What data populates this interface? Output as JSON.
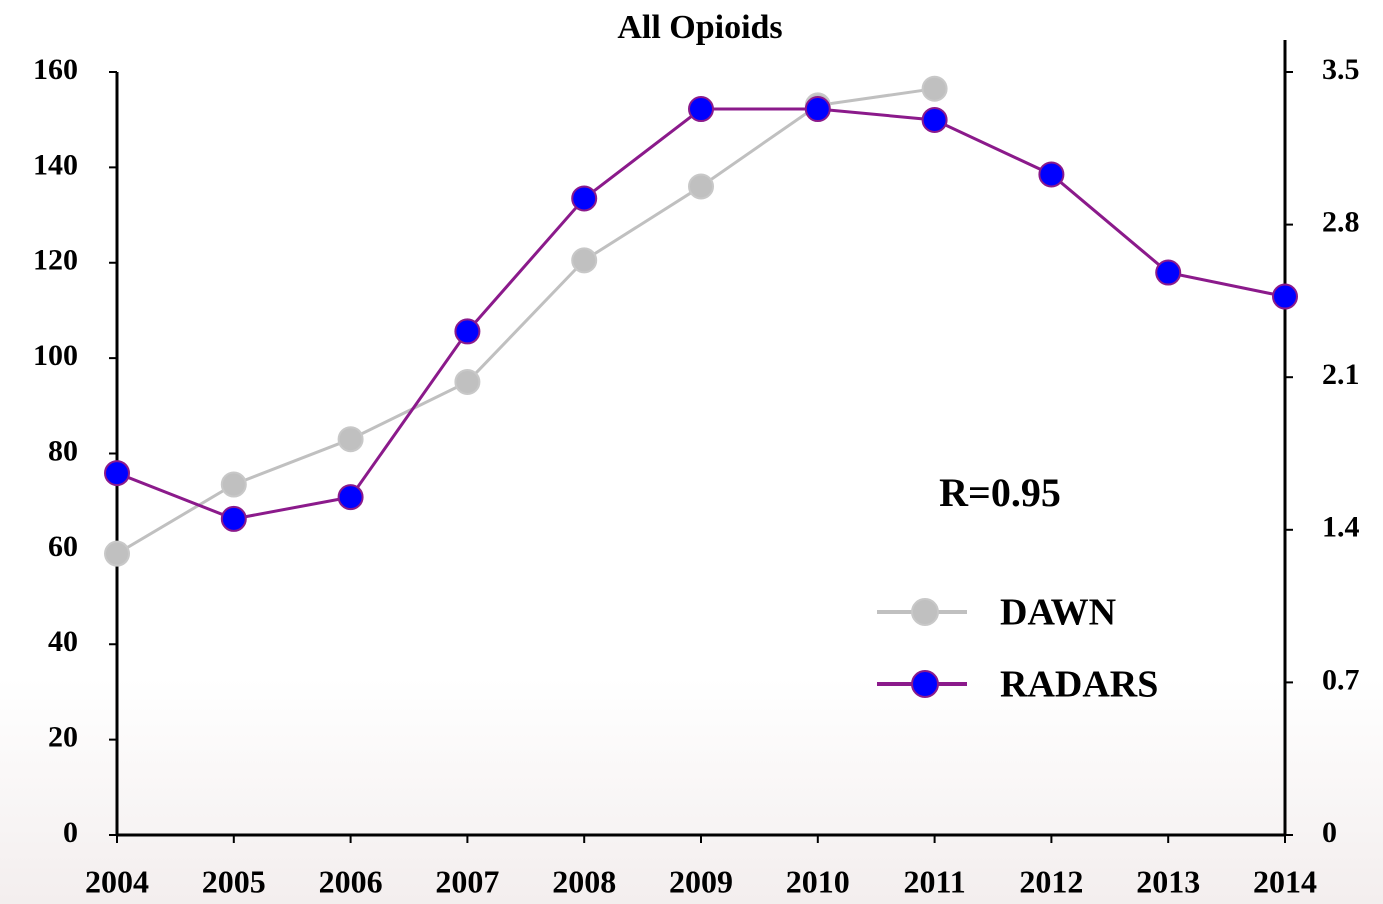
{
  "chart_data": {
    "type": "line",
    "title": "All Opioids",
    "categories": [
      "2004",
      "2005",
      "2006",
      "2007",
      "2008",
      "2009",
      "2010",
      "2011",
      "2012",
      "2013",
      "2014"
    ],
    "series": [
      {
        "name": "DAWN",
        "color": "#c0c0c0",
        "values": [
          59,
          73.5,
          83,
          95,
          120.5,
          136,
          153,
          156.5,
          null,
          null,
          null
        ]
      },
      {
        "name": "RADARS",
        "color": "#8b1a8b",
        "marker_color": "#0000ff",
        "axis": "y2",
        "values": [
          1.66,
          1.45,
          1.55,
          2.31,
          2.92,
          3.33,
          3.33,
          3.28,
          3.03,
          2.58,
          2.47
        ]
      }
    ],
    "ylim": [
      0,
      160
    ],
    "yticks": [
      0,
      20,
      40,
      60,
      80,
      100,
      120,
      140,
      160
    ],
    "y2lim": [
      0,
      3.5
    ],
    "y2ticks": [
      0,
      0.7,
      1.4,
      2.1,
      2.8,
      3.5
    ],
    "annotations": [
      "R=0.95"
    ],
    "grid": false
  }
}
